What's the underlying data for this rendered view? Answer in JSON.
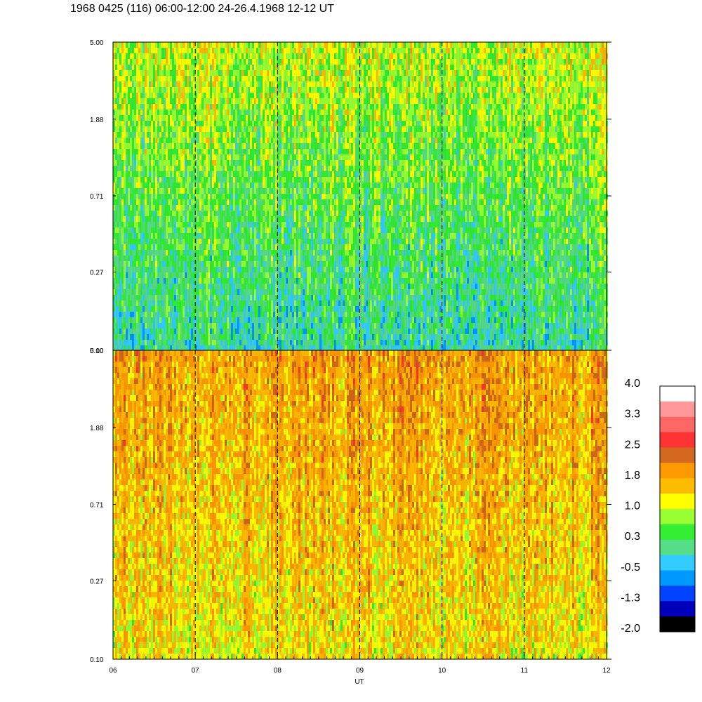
{
  "title": "1968 0425 (116) 06:00-12:00 24-26.4.1968  12-12 UT",
  "chart_data": {
    "type": "heatmap",
    "panels": [
      {
        "name": "",
        "typical_value": 0.4
      },
      {
        "name": "",
        "typical_value": 1.5
      }
    ],
    "y_ticks": [
      "5.00",
      "1.88",
      "0.71",
      "0.27",
      "0.10"
    ],
    "y_range": [
      0.1,
      5.0
    ],
    "y_scale": "log",
    "x_ticks": [
      "06",
      "07",
      "08",
      "09",
      "10",
      "11",
      "12"
    ],
    "x_range": [
      6,
      12
    ],
    "xlabel": "UT",
    "dashed_vertical_lines_at": [
      7,
      8,
      9,
      10,
      11
    ],
    "colorbar": {
      "labels": [
        "4.0",
        "3.3",
        "2.5",
        "1.8",
        "1.0",
        "0.3",
        "-0.5",
        "-1.3",
        "-2.0"
      ],
      "range": [
        -2.0,
        4.0
      ],
      "colors_top_to_bottom": [
        "#ffffff",
        "#ff9999",
        "#ff6666",
        "#ff3333",
        "#d2691e",
        "#ff9900",
        "#ffbb00",
        "#ffff00",
        "#99ff33",
        "#33ee33",
        "#55dd88",
        "#33ccff",
        "#0099ff",
        "#0044ff",
        "#0000bb",
        "#000000"
      ]
    }
  }
}
